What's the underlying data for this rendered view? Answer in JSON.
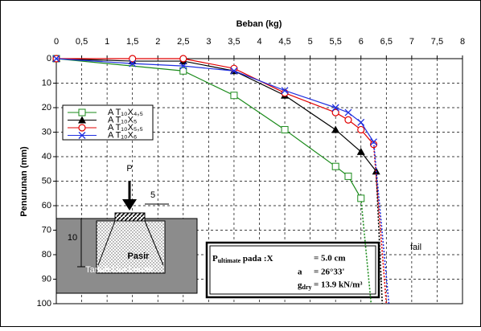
{
  "chart_data": {
    "type": "scatter-line",
    "x_label": "Beban (kg)",
    "y_label": "Penurunan (mm)",
    "xlim": [
      0,
      8
    ],
    "ylim": [
      0,
      100
    ],
    "y_inverted": true,
    "grid": true,
    "xticks": [
      0,
      {
        "value": 0.5,
        "label": "0,5"
      },
      1,
      {
        "value": 1.5,
        "label": "1,5"
      },
      2,
      {
        "value": 2.5,
        "label": "2,5"
      },
      3,
      {
        "value": 3.5,
        "label": "3,5"
      },
      4,
      {
        "value": 4.5,
        "label": "4,5"
      },
      5,
      {
        "value": 5.5,
        "label": "5,5"
      },
      6,
      {
        "value": 6.5,
        "label": "6,5"
      },
      7,
      {
        "value": 7.5,
        "label": "7,5"
      },
      8
    ],
    "yticks": [
      0,
      10,
      20,
      30,
      40,
      50,
      60,
      70,
      80,
      90,
      100
    ],
    "series": [
      {
        "name": "A T₁₀X₄,₅",
        "color": "#1a8a1a",
        "marker": "square",
        "x": [
          0,
          2.5,
          3.5,
          4.5,
          5.5,
          5.75,
          6
        ],
        "values": [
          0,
          5,
          15,
          29,
          44,
          48,
          57
        ],
        "extrapolation": {
          "x": [
            6,
            6.2
          ],
          "values": [
            57,
            100
          ]
        }
      },
      {
        "name": "A T₁₀X₅",
        "color": "#000000",
        "marker": "triangle",
        "x": [
          0,
          1.5,
          2.5,
          3.5,
          4.5,
          5.5,
          6,
          6.3
        ],
        "values": [
          0,
          1,
          1,
          5,
          15,
          29,
          38,
          46
        ],
        "extrapolation": {
          "x": [
            6.3,
            6.42
          ],
          "values": [
            46,
            100
          ]
        }
      },
      {
        "name": "A T₁₀X₅,₅",
        "color": "#e00000",
        "marker": "circle",
        "x": [
          0,
          1.5,
          2.5,
          3.5,
          4.5,
          5.5,
          5.75,
          6,
          6.25
        ],
        "values": [
          0,
          0,
          0,
          4,
          14,
          22,
          25,
          29,
          35
        ],
        "extrapolation": {
          "x": [
            6.25,
            6.5
          ],
          "values": [
            35,
            100
          ]
        }
      },
      {
        "name": "A T₁₀X₆",
        "color": "#1f2fe0",
        "marker": "x",
        "x": [
          0,
          1.5,
          2.5,
          3.5,
          4.5,
          5.5,
          5.75,
          6,
          6.25
        ],
        "values": [
          0,
          2,
          3,
          5,
          13,
          20,
          22,
          26,
          34
        ],
        "extrapolation": {
          "x": [
            6.25,
            6.55
          ],
          "values": [
            34,
            100
          ]
        }
      }
    ],
    "annotations": {
      "fail": "fail",
      "load": "P",
      "width": "5",
      "depth": "10",
      "sand": "Pasir",
      "soil": "Tanah Liat Lunak",
      "box": {
        "p": "P",
        "p_sub": "ultimate",
        "p_text": " pada :X",
        "x_value": "= 5.0 cm",
        "a": "a",
        "a_value": "= 26°33'",
        "g": "g",
        "g_sub": "dry",
        "g_value": "= 13.9 kN/m³"
      }
    }
  }
}
